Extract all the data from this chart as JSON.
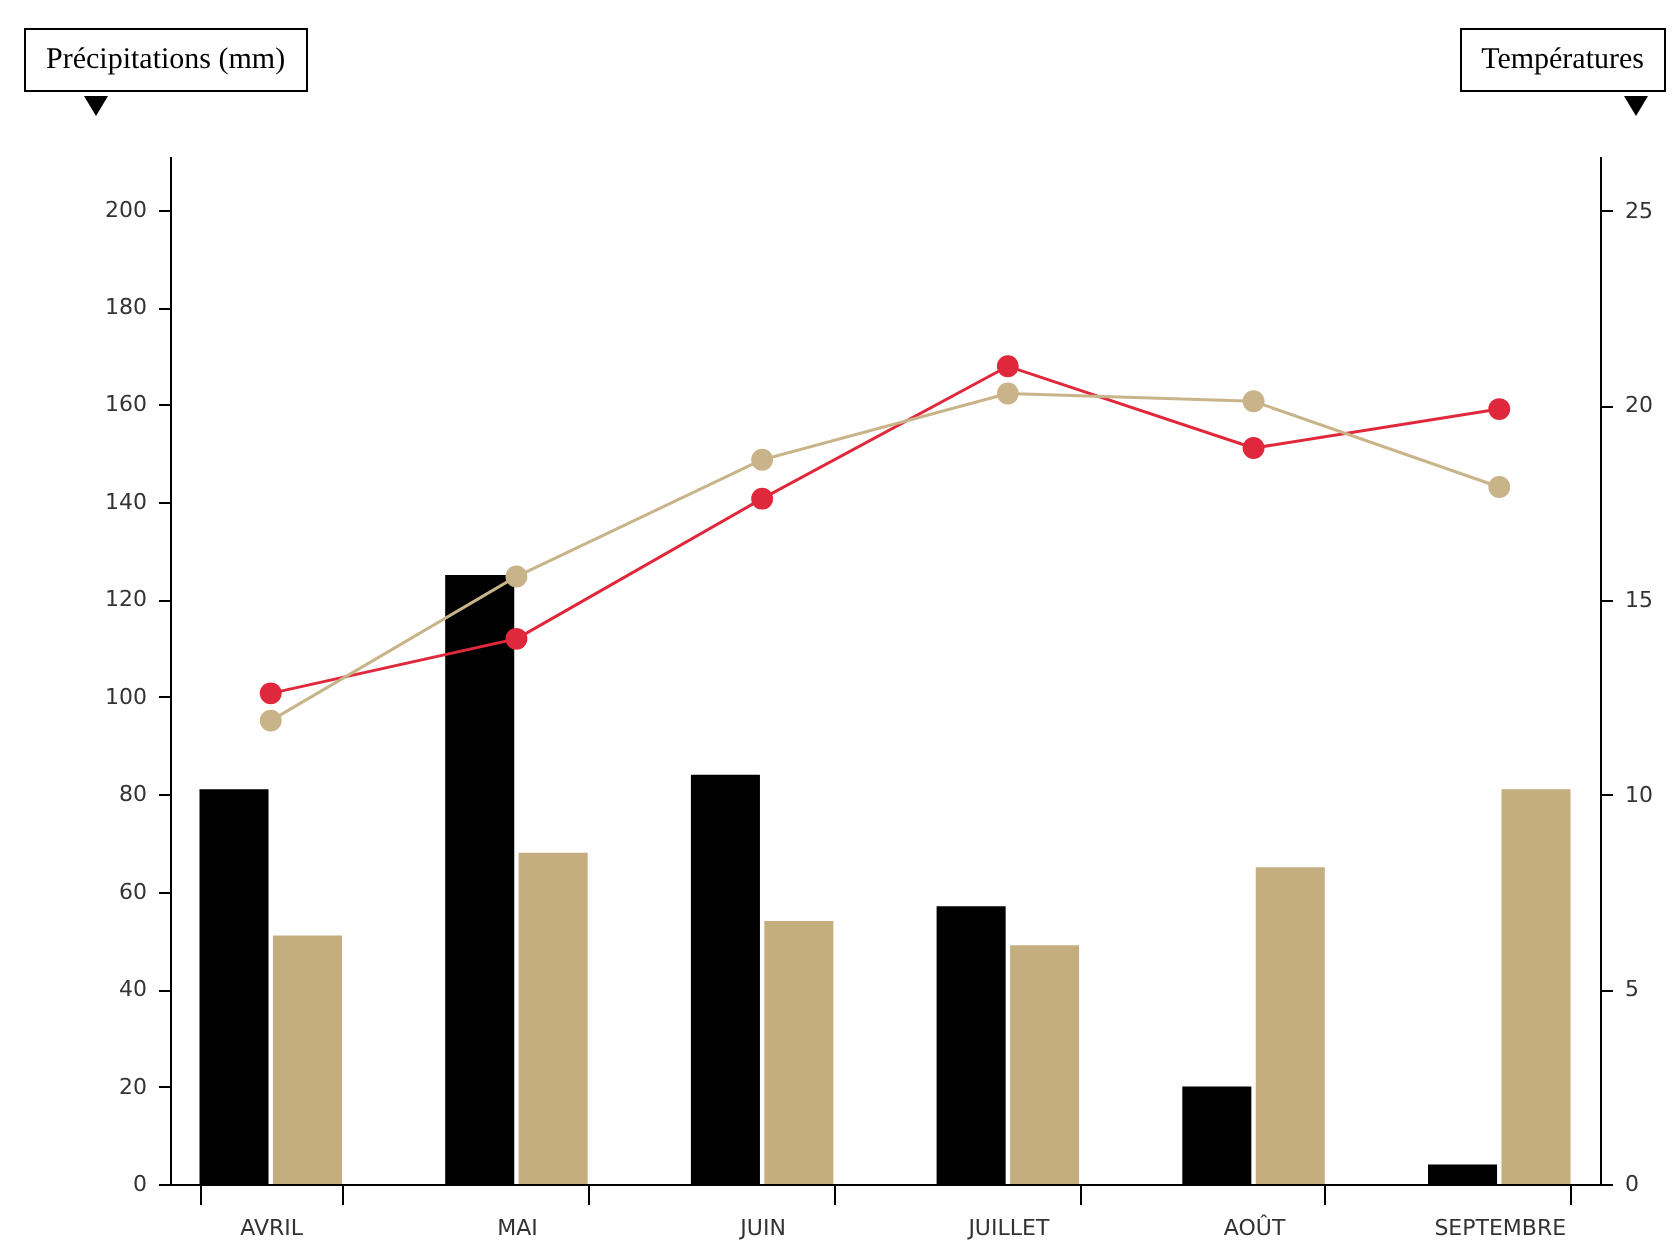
{
  "chart_data": {
    "type": "bar",
    "categories": [
      "AVRIL",
      "MAI",
      "JUIN",
      "JUILLET",
      "AOÛT",
      "SEPTEMBRE"
    ],
    "ylabel": "Précipitations (mm)",
    "y2label": "Températures",
    "series": [
      {
        "color": "#000000",
        "values": [
          81,
          125,
          84,
          57,
          20,
          4
        ]
      },
      {
        "color": "#c4ae80",
        "values": [
          51,
          68,
          54,
          49,
          65,
          81
        ]
      },
      {
        "type": "line",
        "axis": "y2",
        "color": "#e0283c",
        "values": [
          12.6,
          14.0,
          17.6,
          21.0,
          18.9,
          19.9
        ]
      },
      {
        "type": "line",
        "axis": "y2",
        "color": "#c9b48a",
        "values": [
          11.9,
          15.6,
          18.6,
          20.3,
          20.1,
          17.9
        ]
      }
    ],
    "ylim": [
      0,
      211
    ],
    "yticks": [
      0,
      20,
      40,
      60,
      80,
      100,
      120,
      140,
      160,
      180,
      200
    ],
    "y2lim": [
      0,
      26.4
    ],
    "y2ticks": [
      0,
      5,
      10,
      15,
      20,
      25
    ],
    "marker": "circle",
    "grid": false
  }
}
